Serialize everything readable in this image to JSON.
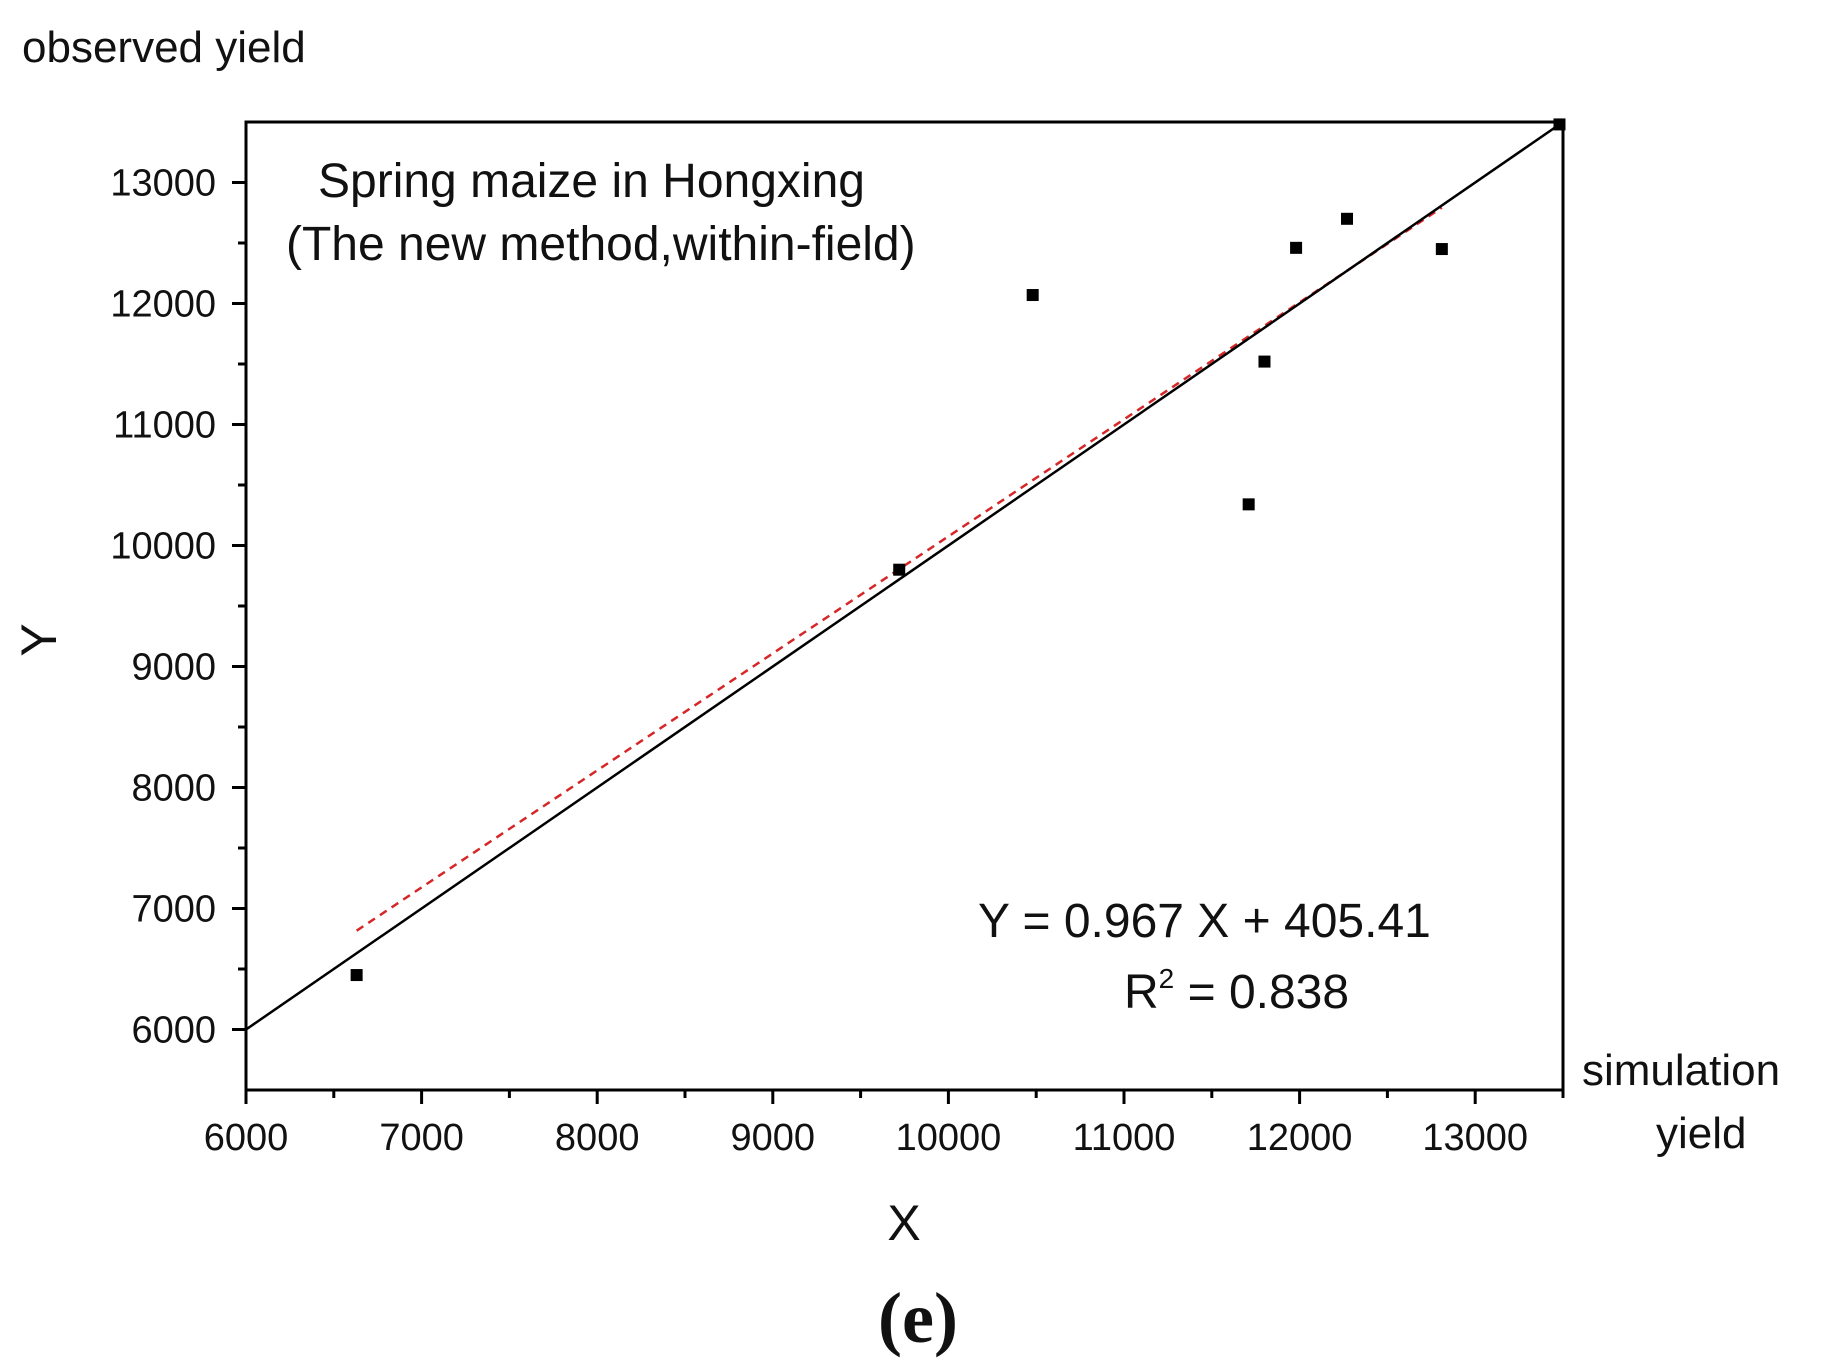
{
  "chart_data": {
    "type": "scatter",
    "ylabel_top": "observed yield",
    "xlabel_right_line1": "simulation",
    "xlabel_right_line2": "yield",
    "xlabel": "X",
    "ylabel": "Y",
    "annotation_line1": "Spring maize in Hongxing",
    "annotation_line2": "(The new method,within-field)",
    "equation": "Y = 0.967 X + 405.41",
    "r2_prefix": "R",
    "r2_sup": "2",
    "r2_value": " =  0.838",
    "panel_label": "(e)",
    "xlim": [
      6000,
      13500
    ],
    "ylim": [
      5500,
      13500
    ],
    "x_ticks": [
      6000,
      7000,
      8000,
      9000,
      10000,
      11000,
      12000,
      13000
    ],
    "y_ticks": [
      6000,
      7000,
      8000,
      9000,
      10000,
      11000,
      12000,
      13000
    ],
    "points": [
      {
        "x": 6630,
        "y": 6450
      },
      {
        "x": 9720,
        "y": 9800
      },
      {
        "x": 10480,
        "y": 12070
      },
      {
        "x": 11710,
        "y": 10340
      },
      {
        "x": 11800,
        "y": 11520
      },
      {
        "x": 11980,
        "y": 12460
      },
      {
        "x": 12270,
        "y": 12700
      },
      {
        "x": 12810,
        "y": 12450
      },
      {
        "x": 13480,
        "y": 13480
      }
    ],
    "reference_line": {
      "slope": 1,
      "intercept": 0,
      "color": "#000000",
      "style": "solid"
    },
    "fit_line": {
      "slope": 0.967,
      "intercept": 405.41,
      "x_range": [
        6630,
        12810
      ],
      "color": "#d62728",
      "style": "dashed"
    },
    "grid": false,
    "colors": {
      "points": "#000000",
      "axes": "#000000",
      "fit": "#d62728"
    }
  }
}
